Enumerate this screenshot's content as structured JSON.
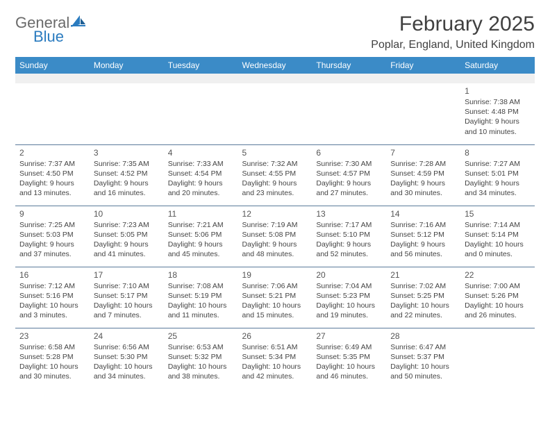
{
  "brand": {
    "line1": "General",
    "line2": "Blue"
  },
  "title": "February 2025",
  "location": "Poplar, England, United Kingdom",
  "colors": {
    "header_bg": "#3b8bc7",
    "header_text": "#ffffff",
    "row_border": "#5a7a9a",
    "placeholder_bg": "#f0f0f0",
    "text": "#333333",
    "logo_gray": "#6a6a6a",
    "logo_blue": "#2a7bbf"
  },
  "weekdays": [
    "Sunday",
    "Monday",
    "Tuesday",
    "Wednesday",
    "Thursday",
    "Friday",
    "Saturday"
  ],
  "weeks": [
    [
      null,
      null,
      null,
      null,
      null,
      null,
      {
        "day": "1",
        "sunrise": "7:38 AM",
        "sunset": "4:48 PM",
        "daylight": "9 hours and 10 minutes."
      }
    ],
    [
      {
        "day": "2",
        "sunrise": "7:37 AM",
        "sunset": "4:50 PM",
        "daylight": "9 hours and 13 minutes."
      },
      {
        "day": "3",
        "sunrise": "7:35 AM",
        "sunset": "4:52 PM",
        "daylight": "9 hours and 16 minutes."
      },
      {
        "day": "4",
        "sunrise": "7:33 AM",
        "sunset": "4:54 PM",
        "daylight": "9 hours and 20 minutes."
      },
      {
        "day": "5",
        "sunrise": "7:32 AM",
        "sunset": "4:55 PM",
        "daylight": "9 hours and 23 minutes."
      },
      {
        "day": "6",
        "sunrise": "7:30 AM",
        "sunset": "4:57 PM",
        "daylight": "9 hours and 27 minutes."
      },
      {
        "day": "7",
        "sunrise": "7:28 AM",
        "sunset": "4:59 PM",
        "daylight": "9 hours and 30 minutes."
      },
      {
        "day": "8",
        "sunrise": "7:27 AM",
        "sunset": "5:01 PM",
        "daylight": "9 hours and 34 minutes."
      }
    ],
    [
      {
        "day": "9",
        "sunrise": "7:25 AM",
        "sunset": "5:03 PM",
        "daylight": "9 hours and 37 minutes."
      },
      {
        "day": "10",
        "sunrise": "7:23 AM",
        "sunset": "5:05 PM",
        "daylight": "9 hours and 41 minutes."
      },
      {
        "day": "11",
        "sunrise": "7:21 AM",
        "sunset": "5:06 PM",
        "daylight": "9 hours and 45 minutes."
      },
      {
        "day": "12",
        "sunrise": "7:19 AM",
        "sunset": "5:08 PM",
        "daylight": "9 hours and 48 minutes."
      },
      {
        "day": "13",
        "sunrise": "7:17 AM",
        "sunset": "5:10 PM",
        "daylight": "9 hours and 52 minutes."
      },
      {
        "day": "14",
        "sunrise": "7:16 AM",
        "sunset": "5:12 PM",
        "daylight": "9 hours and 56 minutes."
      },
      {
        "day": "15",
        "sunrise": "7:14 AM",
        "sunset": "5:14 PM",
        "daylight": "10 hours and 0 minutes."
      }
    ],
    [
      {
        "day": "16",
        "sunrise": "7:12 AM",
        "sunset": "5:16 PM",
        "daylight": "10 hours and 3 minutes."
      },
      {
        "day": "17",
        "sunrise": "7:10 AM",
        "sunset": "5:17 PM",
        "daylight": "10 hours and 7 minutes."
      },
      {
        "day": "18",
        "sunrise": "7:08 AM",
        "sunset": "5:19 PM",
        "daylight": "10 hours and 11 minutes."
      },
      {
        "day": "19",
        "sunrise": "7:06 AM",
        "sunset": "5:21 PM",
        "daylight": "10 hours and 15 minutes."
      },
      {
        "day": "20",
        "sunrise": "7:04 AM",
        "sunset": "5:23 PM",
        "daylight": "10 hours and 19 minutes."
      },
      {
        "day": "21",
        "sunrise": "7:02 AM",
        "sunset": "5:25 PM",
        "daylight": "10 hours and 22 minutes."
      },
      {
        "day": "22",
        "sunrise": "7:00 AM",
        "sunset": "5:26 PM",
        "daylight": "10 hours and 26 minutes."
      }
    ],
    [
      {
        "day": "23",
        "sunrise": "6:58 AM",
        "sunset": "5:28 PM",
        "daylight": "10 hours and 30 minutes."
      },
      {
        "day": "24",
        "sunrise": "6:56 AM",
        "sunset": "5:30 PM",
        "daylight": "10 hours and 34 minutes."
      },
      {
        "day": "25",
        "sunrise": "6:53 AM",
        "sunset": "5:32 PM",
        "daylight": "10 hours and 38 minutes."
      },
      {
        "day": "26",
        "sunrise": "6:51 AM",
        "sunset": "5:34 PM",
        "daylight": "10 hours and 42 minutes."
      },
      {
        "day": "27",
        "sunrise": "6:49 AM",
        "sunset": "5:35 PM",
        "daylight": "10 hours and 46 minutes."
      },
      {
        "day": "28",
        "sunrise": "6:47 AM",
        "sunset": "5:37 PM",
        "daylight": "10 hours and 50 minutes."
      },
      null
    ]
  ],
  "labels": {
    "sunrise": "Sunrise:",
    "sunset": "Sunset:",
    "daylight": "Daylight:"
  }
}
